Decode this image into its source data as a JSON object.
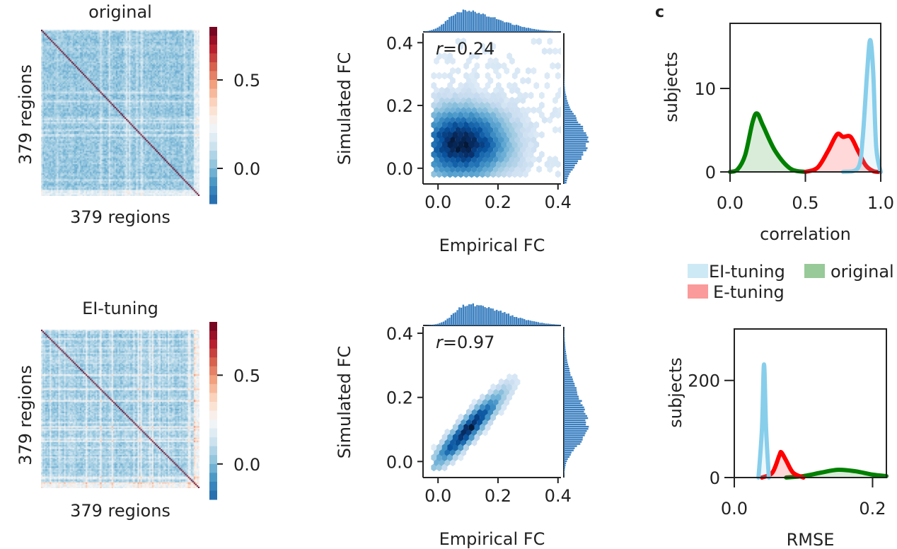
{
  "panel_label": "c",
  "chart_data": [
    {
      "type": "heatmap",
      "title": "original",
      "xlabel": "379 regions",
      "ylabel": "379 regions",
      "n_regions": 379,
      "colormap": "RdBu_r",
      "colorbar_ticks": [
        "0.5",
        "0.0"
      ],
      "colorbar_range": [
        -0.2,
        0.8
      ]
    },
    {
      "type": "heatmap",
      "title": "EI-tuning",
      "xlabel": "379 regions",
      "ylabel": "379 regions",
      "n_regions": 379,
      "colormap": "RdBu_r",
      "colorbar_ticks": [
        "0.5",
        "0.0"
      ],
      "colorbar_range": [
        -0.2,
        0.8
      ]
    },
    {
      "type": "hexbin",
      "xlabel": "Empirical FC",
      "ylabel": "Simulated FC",
      "annotation_r": "r",
      "annotation_val": "=0.24",
      "r": 0.24,
      "xlim": [
        -0.05,
        0.41
      ],
      "ylim": [
        -0.05,
        0.43
      ],
      "xticks": [
        "0.0",
        "0.2",
        "0.4"
      ],
      "yticks": [
        "0.0",
        "0.2",
        "0.4"
      ],
      "center": [
        0.08,
        0.08
      ],
      "colormap": "Blues",
      "marginal_color": "#3a7fc0"
    },
    {
      "type": "hexbin",
      "xlabel": "Empirical FC",
      "ylabel": "Simulated FC",
      "annotation_r": "r",
      "annotation_val": "=0.97",
      "r": 0.97,
      "xlim": [
        -0.05,
        0.41
      ],
      "ylim": [
        -0.05,
        0.42
      ],
      "xticks": [
        "0.0",
        "0.2",
        "0.4"
      ],
      "yticks": [
        "0.0",
        "0.2",
        "0.4"
      ],
      "center": [
        0.1,
        0.1
      ],
      "colormap": "Blues",
      "marginal_color": "#3a7fc0"
    },
    {
      "type": "line",
      "xlabel": "correlation",
      "ylabel": "subjects",
      "xlim": [
        0,
        1
      ],
      "ylim": [
        0,
        17.8
      ],
      "xticks": [
        "0.0",
        "0.5",
        "1.0"
      ],
      "yticks": [
        "0",
        "10"
      ],
      "series": [
        {
          "name": "EI-tuning",
          "color": "#87ceeb",
          "x": [
            0.75,
            0.85,
            0.88,
            0.91,
            0.93,
            0.95,
            0.97,
            1.0
          ],
          "y": [
            0,
            0.5,
            4,
            12,
            15.8,
            12,
            3,
            0
          ]
        },
        {
          "name": "E-tuning",
          "color": "#ff0000",
          "x": [
            0.5,
            0.58,
            0.65,
            0.71,
            0.75,
            0.8,
            0.85,
            0.9,
            0.95,
            1.0
          ],
          "y": [
            0,
            0.5,
            2.5,
            4.5,
            4.2,
            4.2,
            2.5,
            0.8,
            0.1,
            0
          ]
        },
        {
          "name": "original",
          "color": "#008000",
          "x": [
            0,
            0.05,
            0.1,
            0.15,
            0.18,
            0.22,
            0.3,
            0.4,
            0.5
          ],
          "y": [
            0,
            0.3,
            2,
            6,
            7,
            5.5,
            2.5,
            0.4,
            0
          ]
        }
      ]
    },
    {
      "type": "line",
      "xlabel": "RMSE",
      "ylabel": "subjects",
      "xlim": [
        0,
        0.22
      ],
      "ylim": [
        0,
        306
      ],
      "xticks": [
        "0.0",
        "0.2"
      ],
      "yticks": [
        "0",
        "200"
      ],
      "series": [
        {
          "name": "EI-tuning",
          "color": "#87ceeb",
          "x": [
            0.035,
            0.04,
            0.043,
            0.046,
            0.05
          ],
          "y": [
            0,
            100,
            233,
            100,
            0
          ]
        },
        {
          "name": "E-tuning",
          "color": "#ff0000",
          "x": [
            0.04,
            0.055,
            0.065,
            0.068,
            0.075,
            0.085,
            0.1
          ],
          "y": [
            0,
            10,
            45,
            52,
            35,
            10,
            0
          ]
        },
        {
          "name": "original",
          "color": "#008000",
          "x": [
            0.075,
            0.1,
            0.125,
            0.15,
            0.175,
            0.2,
            0.22
          ],
          "y": [
            0,
            3,
            10,
            16,
            13,
            6,
            3
          ]
        }
      ]
    }
  ],
  "legend": [
    {
      "label": "EI-tuning",
      "color": "#cde9f5"
    },
    {
      "label": "original",
      "color": "#98c998"
    },
    {
      "label": "E-tuning",
      "color": "#fb9a9a"
    }
  ]
}
